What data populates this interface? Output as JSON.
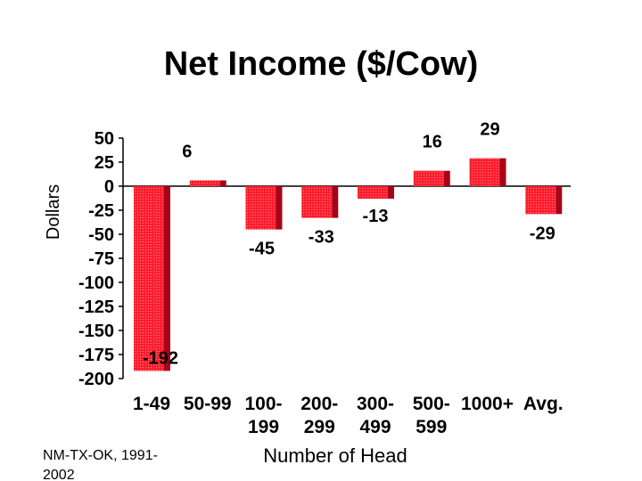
{
  "chart_data": {
    "type": "bar",
    "title": "Net Income ($/Cow)",
    "ylabel": "Dollars",
    "xlabel": "Number of Head",
    "categories": [
      [
        "1-49"
      ],
      [
        "50-99"
      ],
      [
        "100-",
        "199"
      ],
      [
        "200-",
        "299"
      ],
      [
        "300-",
        "499"
      ],
      [
        "500-",
        "599"
      ],
      [
        "1000+"
      ],
      [
        "Avg."
      ]
    ],
    "values": [
      -192,
      6,
      -45,
      -33,
      -13,
      16,
      29,
      -29
    ],
    "data_labels": [
      "-192",
      "6",
      "-45",
      "-33",
      "-13",
      "16",
      "29",
      "-29"
    ],
    "yticks": [
      50,
      25,
      0,
      -25,
      -50,
      -75,
      -100,
      -125,
      -150,
      -175,
      -200
    ],
    "ylim": [
      -200,
      50
    ],
    "grid": false,
    "legend": "none",
    "colors": {
      "bar": "#ff1e2e",
      "bar_side": "#a80018",
      "axis": "#000000"
    }
  },
  "note": {
    "lines": [
      "NM-TX-OK, 1991-",
      "2002"
    ]
  }
}
